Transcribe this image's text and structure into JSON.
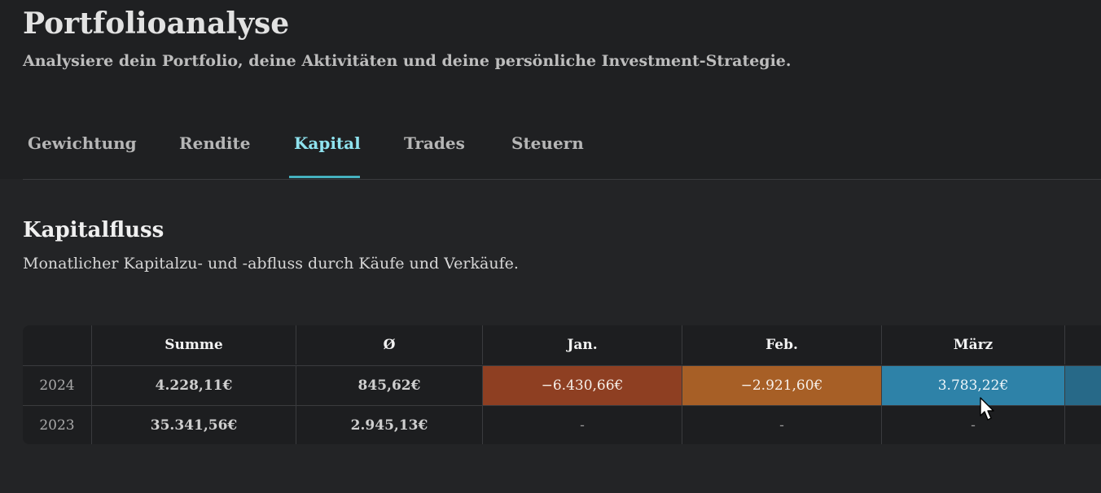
{
  "header": {
    "title": "Portfolioanalyse",
    "subtitle": "Analysiere dein Portfolio, deine Aktivitäten und deine persönliche Investment-Strategie."
  },
  "tabs": [
    {
      "label": "Gewichtung",
      "active": false
    },
    {
      "label": "Rendite",
      "active": false
    },
    {
      "label": "Kapital",
      "active": true
    },
    {
      "label": "Trades",
      "active": false
    },
    {
      "label": "Steuern",
      "active": false
    }
  ],
  "section": {
    "title": "Kapitalfluss",
    "subtitle": "Monatlicher Kapitalzu- und -abfluss durch Käufe und Verkäufe."
  },
  "table": {
    "columns": [
      "",
      "Summe",
      "Ø",
      "Jan.",
      "Feb.",
      "März"
    ],
    "rows": [
      {
        "year": "2024",
        "summe": "4.228,11€",
        "avg": "845,62€",
        "jan": "−6.430,66€",
        "feb": "−2.921,60€",
        "maerz": "3.783,22€"
      },
      {
        "year": "2023",
        "summe": "35.341,56€",
        "avg": "2.945,13€",
        "jan": "-",
        "feb": "-",
        "maerz": "-"
      }
    ]
  },
  "colors": {
    "accent": "#45b1bf",
    "negative_strong": "#8e3f22",
    "negative": "#a75f26",
    "positive": "#2e82a8"
  }
}
